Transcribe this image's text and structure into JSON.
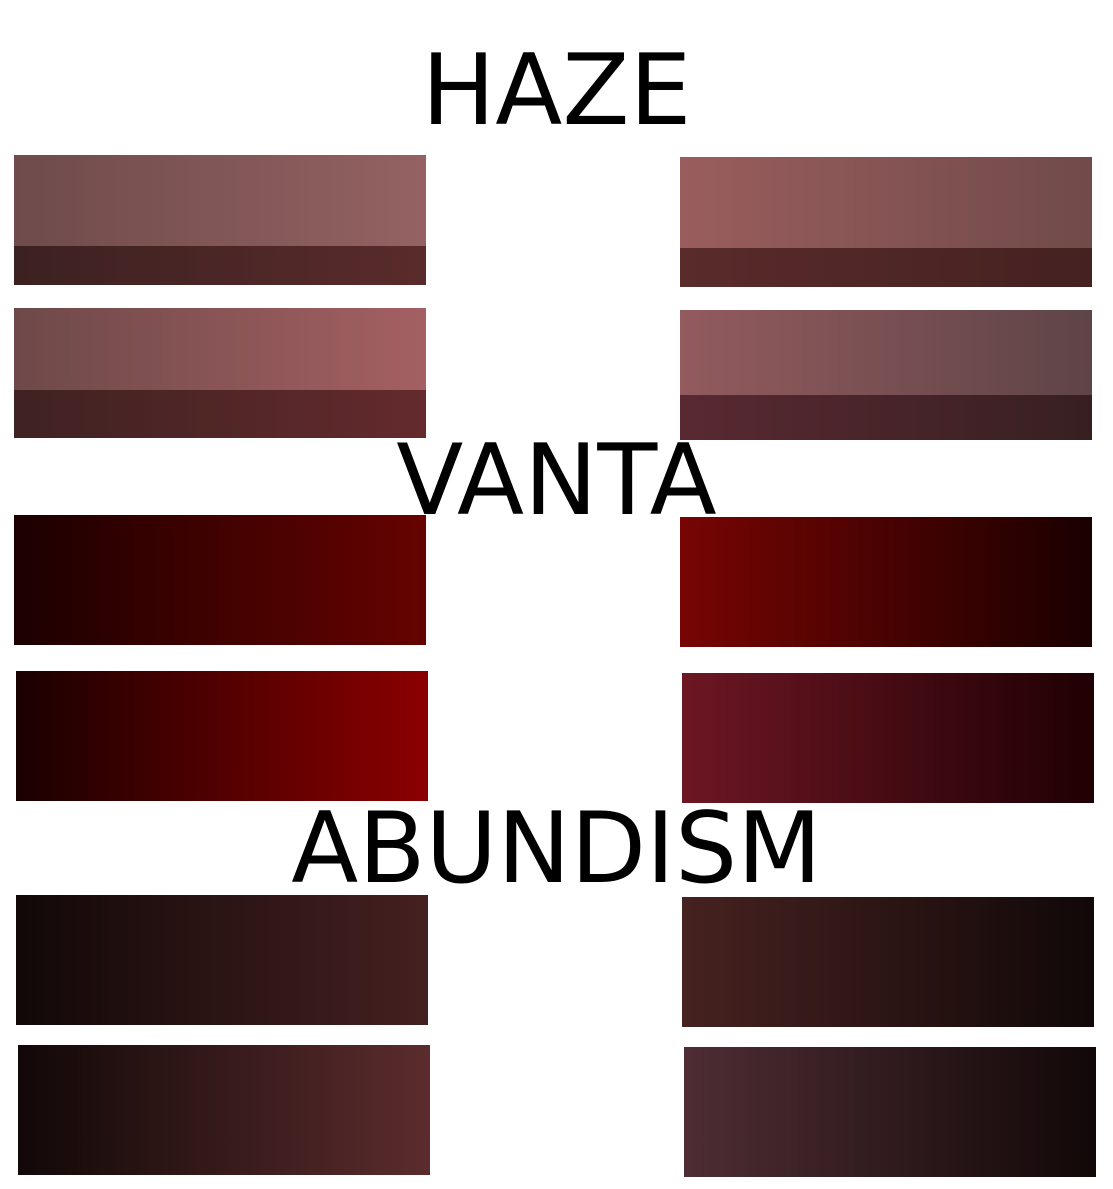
{
  "sections": [
    {
      "title": "HAZE",
      "swatches": [
        {
          "from": "#6f4b4b",
          "to": "#946262",
          "band_from": "#3c2121",
          "band_to": "#5a2b2b"
        },
        {
          "from": "#9a5d5d",
          "to": "#714a4a",
          "band_from": "#5a2b2b",
          "band_to": "#452121"
        },
        {
          "from": "#6e4949",
          "to": "#a46062",
          "band_from": "#3f2222",
          "band_to": "#642a2d"
        },
        {
          "from": "#935b5e",
          "to": "#5e4447",
          "band_from": "#592932",
          "band_to": "#372022"
        }
      ]
    },
    {
      "title": "VANTA",
      "swatches": [
        {
          "from": "#1c0000",
          "to": "#660300"
        },
        {
          "from": "#770503",
          "to": "#1a0000"
        },
        {
          "from": "#1a0000",
          "to": "#8b0000"
        },
        {
          "from": "#6d1723",
          "to": "#1f0004"
        }
      ]
    },
    {
      "title": "ABUNDISM",
      "swatches": [
        {
          "from": "#120808",
          "to": "#452020"
        },
        {
          "from": "#462220",
          "to": "#110808"
        },
        {
          "from": "#120808",
          "to": "#5b2c2d"
        },
        {
          "from": "#4e2d34",
          "to": "#120808"
        }
      ]
    }
  ]
}
